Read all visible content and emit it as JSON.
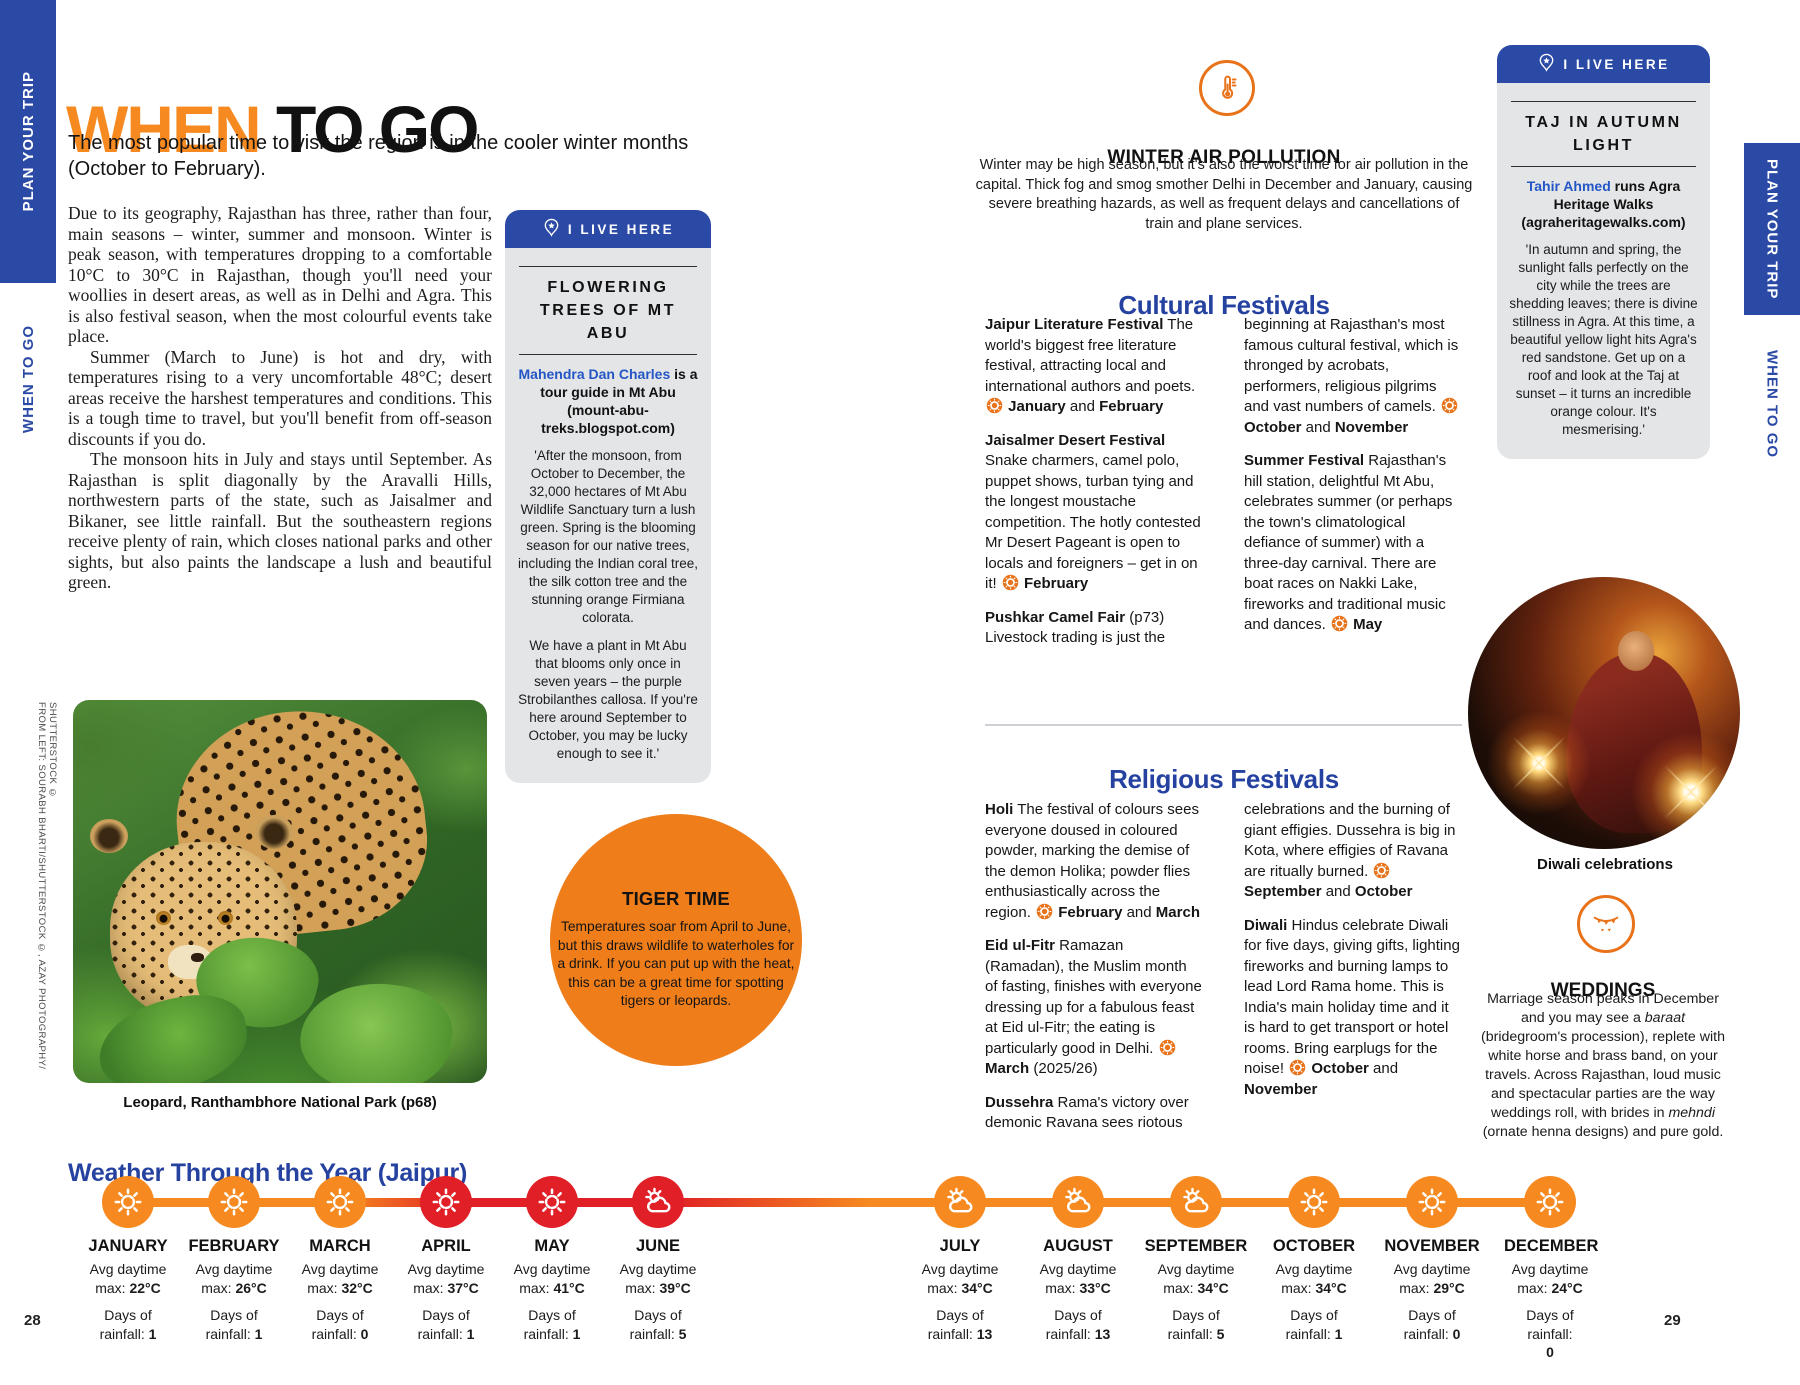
{
  "colors": {
    "brand_blue": "#2b4aa5",
    "heading_blue": "#2642a0",
    "accent_orange": "#f6891f",
    "hot_red": "#e01f26",
    "box_gray": "#e4e5e7",
    "link_blue": "#2456c6"
  },
  "rails": {
    "plan": "PLAN YOUR TRIP",
    "when": "WHEN TO GO"
  },
  "page_left": {
    "page_number": "28",
    "title_accent": "WHEN",
    "title_rest": " TO GO",
    "standfirst": "The most popular time to visit the region is in the cooler winter months (October to February).",
    "body": [
      "Due to its geography, Rajasthan has three, rather than four, main seasons – winter, summer and monsoon. Winter is peak season, with temperatures dropping to a comfortable 10°C to 30°C in Rajasthan, though you'll need your woollies in desert areas, as well as in Delhi and Agra. This is also festival season, when the most colourful events take place.",
      "Summer (March to June) is hot and dry, with temperatures rising to a very uncomfortable 48°C; desert areas receive the harshest temperatures and conditions. This is a tough time to travel, but you'll benefit from off-season discounts if you do.",
      "The monsoon hits in July and stays until September. As Rajasthan is split diagonally by the Aravalli Hills, northwestern parts of the state, such as Jaisalmer and Bikaner, see little rainfall. But the southeastern regions receive plenty of rain, which closes national parks and other sights, but also paints the landscape a lush and beautiful green."
    ],
    "photo_credit": "FROM LEFT: SOURABH BHARTI/SHUTTERSTOCK ©, AZAY PHOTOGRAPHY/ SHUTTERSTOCK ©",
    "photo_caption": "Leopard, Ranthambhore National Park (p68)",
    "live_here": {
      "badge": "I LIVE HERE",
      "title": "FLOWERING TREES OF MT ABU",
      "byline": [
        {
          "blue": "Mahendra Dan Charles"
        },
        {
          "b": " is a tour guide in Mt Abu (mount-abu-treks.blogspot.com)"
        }
      ],
      "paragraphs": [
        "'After the monsoon, from October to December, the 32,000 hectares of Mt Abu Wildlife Sanctuary turn a lush green. Spring is the blooming season for our native trees, including the Indian coral tree, the silk cotton tree and the stunning orange Firmiana colorata.",
        "We have a plant in Mt Abu that blooms only once in seven years – the purple Strobilanthes callosa. If you're here around September to October, you may be lucky enough to see it.'"
      ]
    },
    "tiger_time": {
      "title": "TIGER TIME",
      "text": "Temperatures soar from April to June, but this draws wildlife to waterholes for a drink. If you can put up with the heat, this can be a great time for spotting tigers or leopards."
    },
    "weather_heading": "Weather Through the Year (Jaipur)"
  },
  "page_right": {
    "page_number": "29",
    "air_pollution": {
      "icon": "thermometer-icon",
      "title": "WINTER AIR POLLUTION",
      "text": "Winter may be high season, but it's also the worst time for air pollution in the capital. Thick fog and smog smother Delhi in December and January, causing severe breathing hazards, as well as frequent delays and cancellations of train and plane services."
    },
    "cultural": {
      "heading": "Cultural Festivals",
      "col1": [
        [
          {
            "b": "Jaipur Literature Festival"
          },
          {
            "t": " The world's biggest free literature festival, attracting local and international authors and poets. "
          },
          {
            "sun": true
          },
          {
            "t": " "
          },
          {
            "b": "January"
          },
          {
            "t": " and "
          },
          {
            "b": "February"
          }
        ],
        [
          {
            "b": "Jaisalmer Desert Festival"
          },
          {
            "t": " Snake charmers, camel polo, puppet shows, turban tying and the longest moustache competition. The hotly contested Mr Desert Pageant is open to locals and foreigners – get in on it! "
          },
          {
            "sun": true
          },
          {
            "t": " "
          },
          {
            "b": "February"
          }
        ],
        [
          {
            "b": "Pushkar Camel Fair"
          },
          {
            "t": " (p73) Livestock trading is just the"
          }
        ]
      ],
      "col2": [
        [
          {
            "t": "beginning at Rajasthan's most famous cultural festival, which is thronged by acrobats, performers, religious pilgrims and vast numbers of camels. "
          },
          {
            "sun": true
          },
          {
            "t": " "
          },
          {
            "b": "October"
          },
          {
            "t": " and "
          },
          {
            "b": "November"
          }
        ],
        [
          {
            "b": "Summer Festival"
          },
          {
            "t": " Rajasthan's hill station, delightful Mt Abu, celebrates summer (or perhaps the town's climatological defiance of summer) with a three-day carnival. There are boat races on Nakki Lake, fireworks and traditional music and dances. "
          },
          {
            "sun": true
          },
          {
            "t": " "
          },
          {
            "b": "May"
          }
        ]
      ]
    },
    "religious": {
      "heading": "Religious Festivals",
      "col1": [
        [
          {
            "b": "Holi"
          },
          {
            "t": " The festival of colours sees everyone doused in coloured powder, marking the demise of the demon Holika; powder flies enthusiastically across the region. "
          },
          {
            "sun": true
          },
          {
            "t": " "
          },
          {
            "b": "February"
          },
          {
            "t": " and "
          },
          {
            "b": "March"
          }
        ],
        [
          {
            "b": "Eid ul-Fitr"
          },
          {
            "t": " Ramazan (Ramadan), the Muslim month of fasting, finishes with everyone dressing up for a fabulous feast at Eid ul-Fitr; the eating is particularly good in Delhi. "
          },
          {
            "sun": true
          },
          {
            "t": " "
          },
          {
            "b": "March"
          },
          {
            "t": " (2025/26)"
          }
        ],
        [
          {
            "b": "Dussehra"
          },
          {
            "t": " Rama's victory over demonic Ravana sees riotous"
          }
        ]
      ],
      "col2": [
        [
          {
            "t": "celebrations and the burning of giant effigies. Dussehra is big in Kota, where effigies of Ravana are ritually burned. "
          },
          {
            "sun": true
          },
          {
            "t": " "
          },
          {
            "b": "September"
          },
          {
            "t": " and "
          },
          {
            "b": "October"
          }
        ],
        [
          {
            "b": "Diwali"
          },
          {
            "t": " Hindus celebrate Diwali for five days, giving gifts, lighting fireworks and burning lamps to lead Lord Rama home. This is India's main holiday time and it is hard to get transport or hotel rooms. Bring earplugs for the noise! "
          },
          {
            "sun": true
          },
          {
            "t": " "
          },
          {
            "b": "October"
          },
          {
            "t": " and "
          },
          {
            "b": "November"
          }
        ]
      ]
    },
    "live_here": {
      "badge": "I LIVE HERE",
      "title": "TAJ IN AUTUMN LIGHT",
      "byline": [
        {
          "blue": "Tahir Ahmed"
        },
        {
          "b": " runs Agra Heritage Walks (agraheritagewalks.com)"
        }
      ],
      "paragraphs": [
        "'In autumn and spring, the sunlight falls perfectly on the city while the trees are shedding leaves; there is divine stillness in Agra. At this time, a beautiful yellow light hits Agra's red sandstone. Get up on a roof and look at the Taj at sunset – it turns an incredible orange colour. It's mesmerising.'"
      ]
    },
    "diwali_caption": "Diwali celebrations",
    "weddings": {
      "icon": "bunting-icon",
      "title": "WEDDINGS",
      "text": [
        {
          "t": "Marriage season peaks in December and you may see a "
        },
        {
          "i": "baraat"
        },
        {
          "t": " (bridegroom's procession), replete with white horse and brass band, on your travels. Across Rajasthan, loud music and spectacular parties are the way weddings roll, with brides in "
        },
        {
          "i": "mehndi"
        },
        {
          "t": " (ornate henna designs) and pure gold."
        }
      ]
    }
  },
  "weather_timeline": {
    "labels": {
      "avg_line1": "Avg daytime",
      "avg_line2": "max:",
      "rain_line1": "Days of",
      "rain_line2": "rainfall:"
    },
    "months": [
      {
        "name": "JANUARY",
        "temp": "22°C",
        "rain": "1",
        "icon": "sun",
        "tone": "orange"
      },
      {
        "name": "FEBRUARY",
        "temp": "26°C",
        "rain": "1",
        "icon": "sun",
        "tone": "orange"
      },
      {
        "name": "MARCH",
        "temp": "32°C",
        "rain": "0",
        "icon": "sun",
        "tone": "orange"
      },
      {
        "name": "APRIL",
        "temp": "37°C",
        "rain": "1",
        "icon": "sun",
        "tone": "red"
      },
      {
        "name": "MAY",
        "temp": "41°C",
        "rain": "1",
        "icon": "sun",
        "tone": "red"
      },
      {
        "name": "JUNE",
        "temp": "39°C",
        "rain": "5",
        "icon": "sun-cloud",
        "tone": "red"
      },
      {
        "name": "JULY",
        "temp": "34°C",
        "rain": "13",
        "icon": "sun-cloud",
        "tone": "orange"
      },
      {
        "name": "AUGUST",
        "temp": "33°C",
        "rain": "13",
        "icon": "sun-cloud",
        "tone": "orange"
      },
      {
        "name": "SEPTEMBER",
        "temp": "34°C",
        "rain": "5",
        "icon": "sun-cloud",
        "tone": "orange"
      },
      {
        "name": "OCTOBER",
        "temp": "34°C",
        "rain": "1",
        "icon": "sun",
        "tone": "orange"
      },
      {
        "name": "NOVEMBER",
        "temp": "29°C",
        "rain": "0",
        "icon": "sun",
        "tone": "orange"
      },
      {
        "name": "DECEMBER",
        "temp": "24°C",
        "rain": "0",
        "icon": "sun",
        "tone": "orange",
        "wrap": true
      }
    ]
  }
}
